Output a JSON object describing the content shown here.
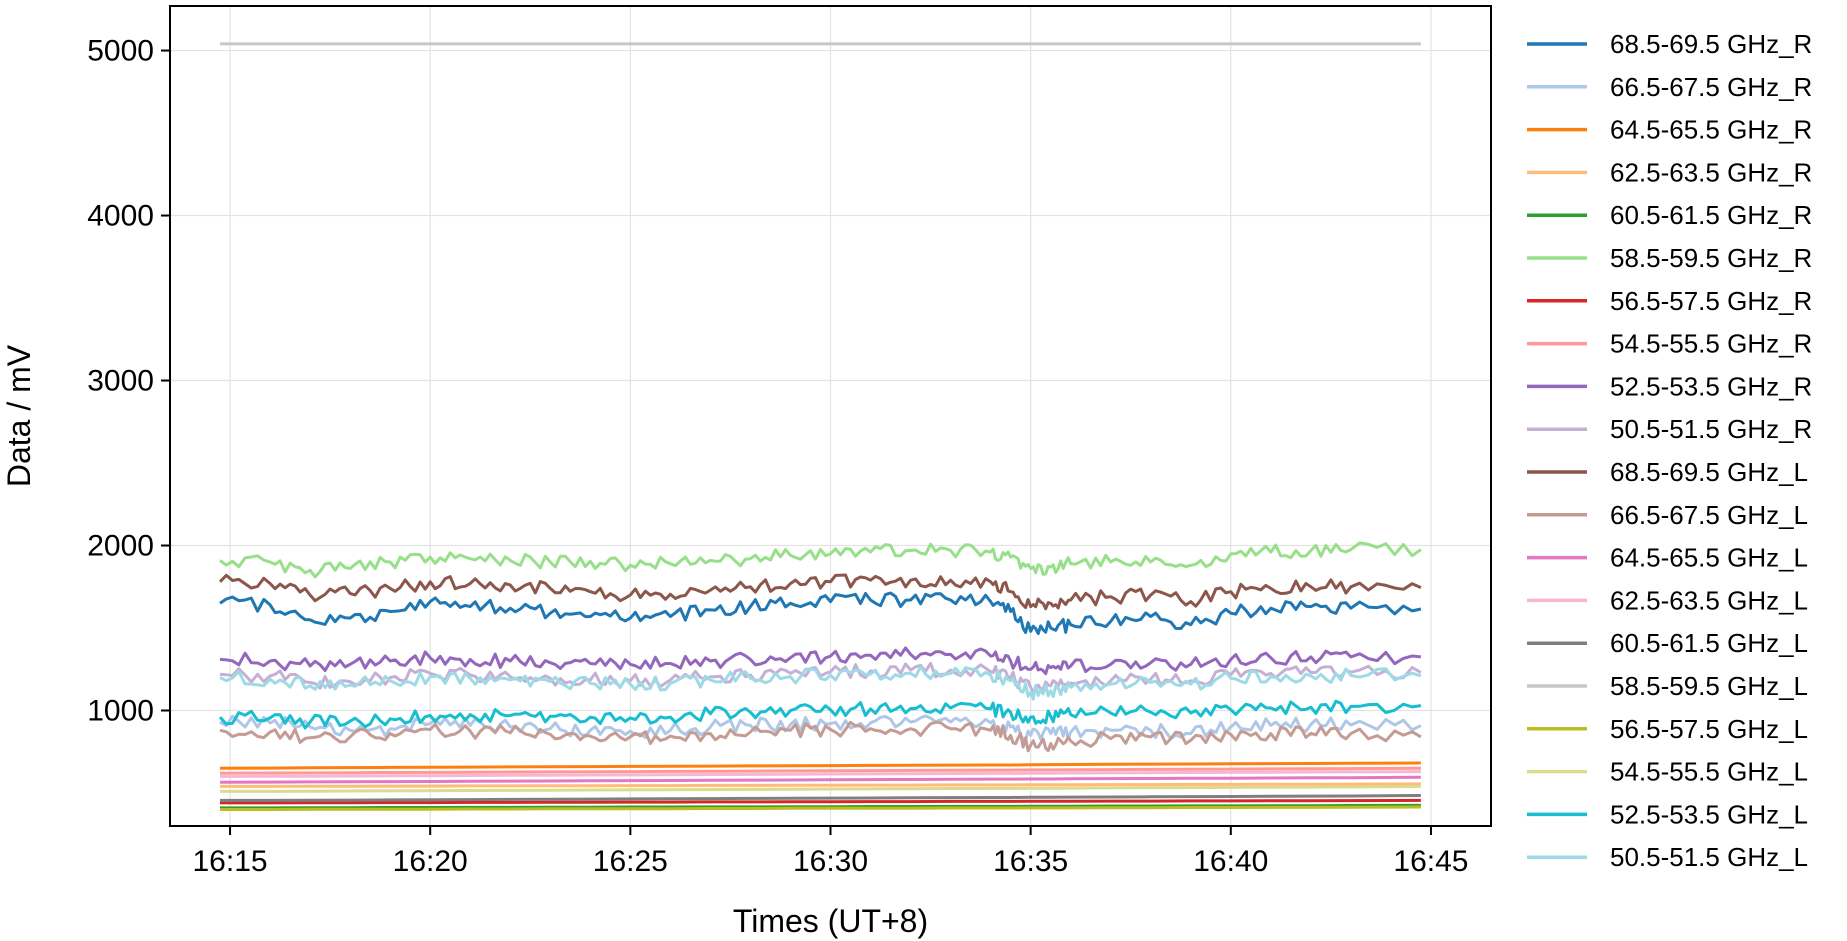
{
  "chart_data": {
    "type": "line",
    "xlabel": "Times (UT+8)",
    "ylabel": "Data / mV",
    "xlim": [
      "16:13:30",
      "16:46:30"
    ],
    "ylim": [
      300,
      5270
    ],
    "x_ticks": [
      "16:15",
      "16:20",
      "16:25",
      "16:30",
      "16:35",
      "16:40",
      "16:45"
    ],
    "y_ticks": [
      1000,
      2000,
      3000,
      4000,
      5000
    ],
    "grid": true,
    "legend_position": "outside-right",
    "x_start": "16:14:45",
    "x_end": "16:44:45",
    "x": [
      "16:14:45",
      "16:16:00",
      "16:17:00",
      "16:18:00",
      "16:19:00",
      "16:20:00",
      "16:21:00",
      "16:22:00",
      "16:23:00",
      "16:24:00",
      "16:25:00",
      "16:26:00",
      "16:27:00",
      "16:28:00",
      "16:29:00",
      "16:30:00",
      "16:31:00",
      "16:32:00",
      "16:33:00",
      "16:34:00",
      "16:34:30",
      "16:35:00",
      "16:35:30",
      "16:36:00",
      "16:37:00",
      "16:38:00",
      "16:39:00",
      "16:40:00",
      "16:41:00",
      "16:42:00",
      "16:43:00",
      "16:44:45"
    ],
    "series": [
      {
        "name": "68.5-69.5 GHz_R",
        "color": "#1f77b4",
        "values": [
          1650,
          1640,
          1550,
          1560,
          1600,
          1660,
          1630,
          1620,
          1590,
          1570,
          1560,
          1570,
          1610,
          1630,
          1650,
          1660,
          1670,
          1670,
          1670,
          1660,
          1600,
          1480,
          1500,
          1520,
          1540,
          1570,
          1520,
          1590,
          1620,
          1630,
          1620,
          1615
        ]
      },
      {
        "name": "66.5-67.5 GHz_R",
        "color": "#aec7e8",
        "values": [
          930,
          925,
          900,
          880,
          890,
          920,
          910,
          900,
          890,
          880,
          875,
          880,
          900,
          910,
          915,
          920,
          925,
          930,
          930,
          925,
          900,
          850,
          860,
          870,
          880,
          880,
          860,
          900,
          910,
          915,
          912,
          910
        ]
      },
      {
        "name": "64.5-65.5 GHz_R",
        "color": "#ff7f0e",
        "values": [
          650,
          651,
          653,
          654,
          655,
          656,
          657,
          658,
          659,
          660,
          661,
          662,
          663,
          664,
          665,
          666,
          667,
          668,
          669,
          670,
          670,
          671,
          672,
          673,
          674,
          675,
          676,
          677,
          678,
          679,
          680,
          682
        ]
      },
      {
        "name": "62.5-63.5 GHz_R",
        "color": "#ffbb78",
        "values": [
          540,
          540,
          541,
          541,
          542,
          542,
          543,
          543,
          544,
          544,
          545,
          545,
          546,
          546,
          547,
          547,
          548,
          548,
          549,
          549,
          549,
          550,
          550,
          550,
          551,
          551,
          552,
          552,
          553,
          553,
          554,
          555
        ]
      },
      {
        "name": "60.5-61.5 GHz_R",
        "color": "#2ca02c",
        "values": [
          410,
          410,
          411,
          411,
          412,
          412,
          413,
          413,
          414,
          414,
          415,
          415,
          416,
          416,
          417,
          417,
          418,
          418,
          419,
          419,
          419,
          420,
          420,
          420,
          421,
          421,
          422,
          422,
          423,
          423,
          424,
          425
        ]
      },
      {
        "name": "58.5-59.5 GHz_R",
        "color": "#98df8a",
        "values": [
          1910,
          1900,
          1850,
          1860,
          1900,
          1930,
          1920,
          1910,
          1900,
          1905,
          1880,
          1890,
          1910,
          1920,
          1940,
          1950,
          1960,
          1970,
          1970,
          1960,
          1930,
          1860,
          1870,
          1890,
          1900,
          1900,
          1880,
          1950,
          1960,
          1970,
          1975,
          1975
        ]
      },
      {
        "name": "56.5-57.5 GHz_R",
        "color": "#d62728",
        "values": [
          440,
          440,
          441,
          441,
          442,
          442,
          443,
          443,
          444,
          444,
          445,
          445,
          446,
          446,
          447,
          447,
          448,
          448,
          449,
          449,
          449,
          450,
          450,
          450,
          451,
          451,
          452,
          452,
          453,
          453,
          454,
          455
        ]
      },
      {
        "name": "54.5-55.5 GHz_R",
        "color": "#ff9896",
        "values": [
          620,
          621,
          622,
          623,
          624,
          625,
          626,
          627,
          628,
          629,
          630,
          631,
          632,
          633,
          634,
          635,
          636,
          637,
          638,
          639,
          639,
          640,
          640,
          641,
          642,
          643,
          644,
          645,
          646,
          647,
          648,
          650
        ]
      },
      {
        "name": "52.5-53.5 GHz_R",
        "color": "#9467bd",
        "values": [
          1310,
          1300,
          1270,
          1280,
          1300,
          1320,
          1310,
          1300,
          1290,
          1285,
          1280,
          1285,
          1300,
          1310,
          1320,
          1330,
          1335,
          1340,
          1340,
          1330,
          1300,
          1250,
          1260,
          1270,
          1280,
          1290,
          1280,
          1310,
          1320,
          1325,
          1325,
          1325
        ]
      },
      {
        "name": "50.5-51.5 GHz_R",
        "color": "#c5b0d5",
        "values": [
          1220,
          1210,
          1170,
          1175,
          1200,
          1225,
          1215,
          1205,
          1195,
          1185,
          1180,
          1185,
          1205,
          1215,
          1225,
          1235,
          1240,
          1245,
          1245,
          1235,
          1200,
          1140,
          1150,
          1165,
          1180,
          1190,
          1180,
          1215,
          1225,
          1230,
          1232,
          1230
        ]
      },
      {
        "name": "68.5-69.5 GHz_L",
        "color": "#8c564b",
        "values": [
          1780,
          1770,
          1700,
          1710,
          1740,
          1780,
          1770,
          1760,
          1740,
          1720,
          1700,
          1705,
          1730,
          1750,
          1770,
          1780,
          1790,
          1790,
          1790,
          1780,
          1720,
          1630,
          1650,
          1670,
          1690,
          1700,
          1660,
          1720,
          1740,
          1750,
          1750,
          1745
        ]
      },
      {
        "name": "66.5-67.5 GHz_L",
        "color": "#c49c94",
        "values": [
          880,
          870,
          835,
          840,
          860,
          885,
          875,
          865,
          855,
          845,
          840,
          845,
          860,
          870,
          880,
          885,
          890,
          890,
          890,
          880,
          850,
          790,
          800,
          815,
          830,
          840,
          820,
          855,
          860,
          862,
          860,
          840
        ]
      },
      {
        "name": "64.5-65.5 GHz_L",
        "color": "#e377c2",
        "values": [
          565,
          566,
          567,
          568,
          569,
          570,
          571,
          572,
          573,
          574,
          575,
          576,
          577,
          578,
          579,
          580,
          581,
          582,
          583,
          584,
          584,
          585,
          585,
          586,
          587,
          588,
          589,
          590,
          591,
          592,
          593,
          595
        ]
      },
      {
        "name": "62.5-63.5 GHz_L",
        "color": "#f7b6d2",
        "values": [
          600,
          601,
          602,
          603,
          604,
          605,
          606,
          607,
          608,
          609,
          610,
          611,
          612,
          613,
          614,
          615,
          616,
          617,
          618,
          619,
          619,
          620,
          620,
          621,
          622,
          623,
          624,
          625,
          626,
          627,
          628,
          630
        ]
      },
      {
        "name": "60.5-61.5 GHz_L",
        "color": "#7f7f7f",
        "values": [
          455,
          455,
          456,
          457,
          458,
          459,
          460,
          461,
          462,
          463,
          464,
          465,
          466,
          467,
          468,
          469,
          470,
          471,
          472,
          473,
          473,
          474,
          474,
          475,
          476,
          477,
          478,
          479,
          480,
          481,
          482,
          485
        ]
      },
      {
        "name": "58.5-59.5 GHz_L",
        "color": "#c7c7c7",
        "values": [
          5040,
          5040,
          5040,
          5040,
          5040,
          5040,
          5040,
          5040,
          5040,
          5040,
          5040,
          5040,
          5040,
          5040,
          5040,
          5040,
          5040,
          5040,
          5040,
          5040,
          5040,
          5040,
          5040,
          5040,
          5040,
          5040,
          5040,
          5040,
          5040,
          5040,
          5040,
          5040
        ]
      },
      {
        "name": "56.5-57.5 GHz_L",
        "color": "#bcbd22",
        "values": [
          400,
          400,
          401,
          401,
          402,
          402,
          403,
          403,
          404,
          404,
          405,
          405,
          406,
          406,
          407,
          407,
          408,
          408,
          409,
          409,
          409,
          410,
          410,
          410,
          411,
          411,
          412,
          412,
          413,
          413,
          414,
          415
        ]
      },
      {
        "name": "54.5-55.5 GHz_L",
        "color": "#dbdb8d",
        "values": [
          510,
          510,
          511,
          512,
          513,
          514,
          515,
          516,
          517,
          518,
          519,
          520,
          521,
          522,
          523,
          524,
          525,
          526,
          527,
          528,
          528,
          529,
          529,
          530,
          531,
          532,
          533,
          534,
          535,
          536,
          537,
          540
        ]
      },
      {
        "name": "52.5-53.5 GHz_L",
        "color": "#17becf",
        "values": [
          960,
          955,
          930,
          935,
          950,
          970,
          975,
          970,
          965,
          960,
          955,
          960,
          980,
          990,
          1000,
          1005,
          1010,
          1012,
          1015,
          1010,
          990,
          960,
          965,
          975,
          985,
          990,
          985,
          1005,
          1015,
          1020,
          1025,
          1030
        ]
      },
      {
        "name": "50.5-51.5 GHz_L",
        "color": "#9edae5",
        "values": [
          1200,
          1190,
          1150,
          1155,
          1180,
          1205,
          1195,
          1185,
          1175,
          1165,
          1160,
          1165,
          1185,
          1195,
          1205,
          1215,
          1220,
          1225,
          1225,
          1215,
          1180,
          1110,
          1120,
          1140,
          1160,
          1170,
          1160,
          1195,
          1205,
          1210,
          1212,
          1210
        ]
      }
    ]
  }
}
